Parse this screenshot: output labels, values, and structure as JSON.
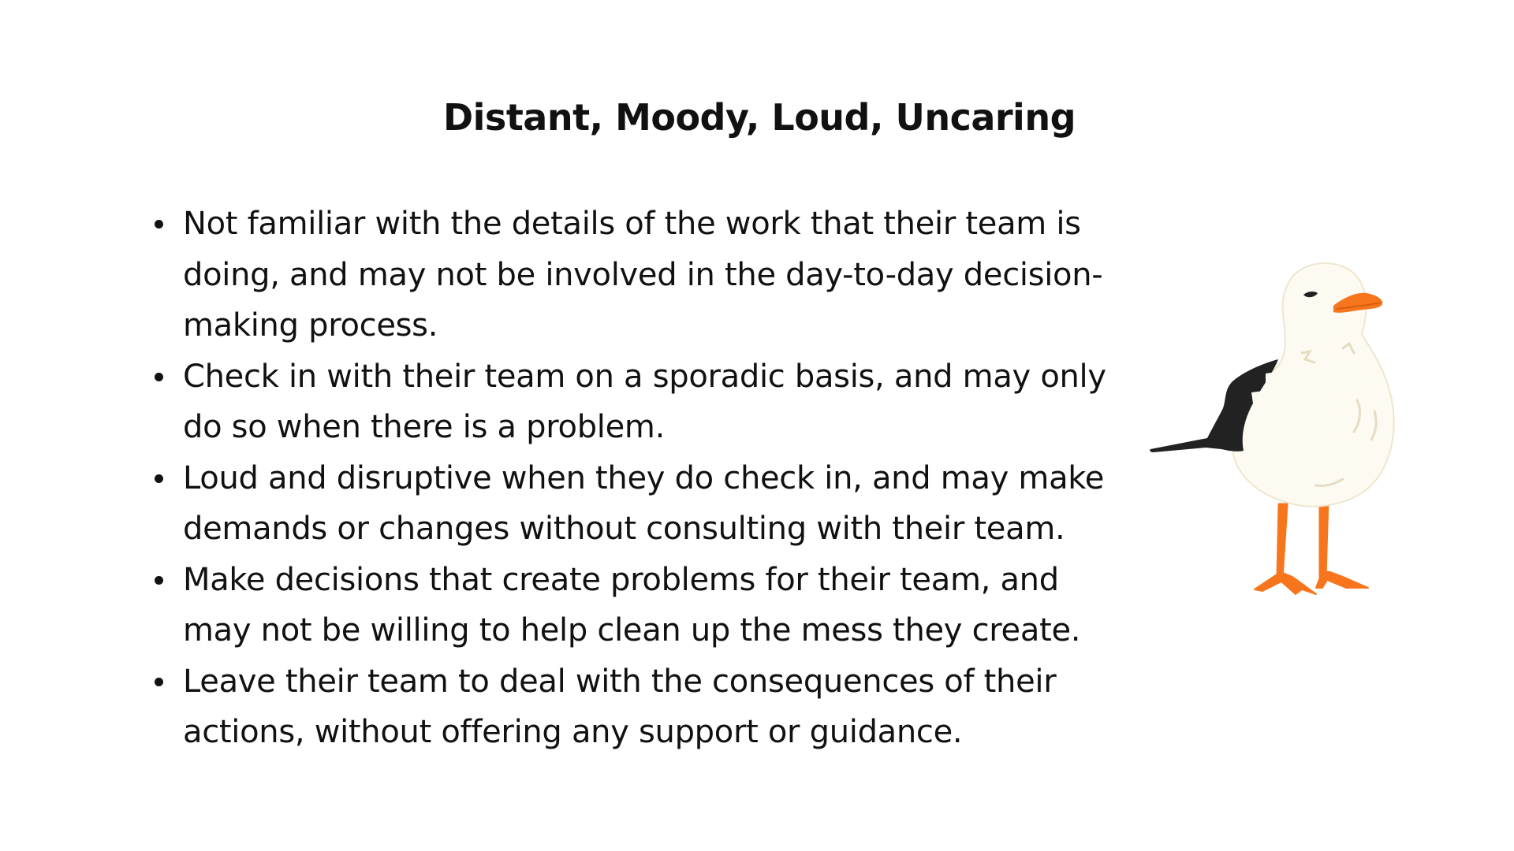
{
  "slide": {
    "title": "Distant, Moody, Loud, Uncaring",
    "bullets": [
      "Not familiar with the details of the work that their team is doing, and may not be involved in the day-to-day decision-making process.",
      "Check in with their team on a sporadic basis, and may only do so when there is a problem.",
      "Loud and disruptive when they do check in, and may make demands or changes without consulting with their team.",
      "Make decisions that create problems for their team, and may not be willing to help clean up the mess they create.",
      "Leave their team to deal with the consequences of their actions, without offering any support or guidance."
    ],
    "illustration": {
      "icon": "seagull-illustration",
      "colors": {
        "body": "#fdfaf1",
        "wing": "#222222",
        "beak_and_legs": "#f7761d",
        "outline_detail": "#e6dcc4"
      }
    }
  }
}
